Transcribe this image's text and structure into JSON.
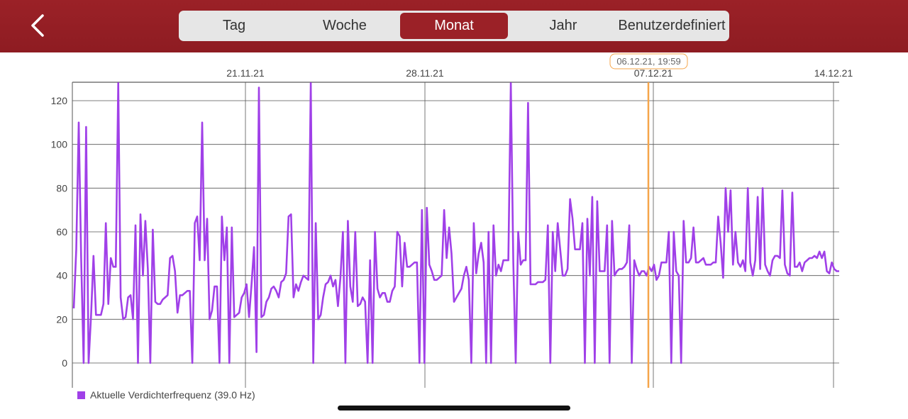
{
  "header": {
    "back_icon": "chevron-left-icon",
    "tabs": [
      {
        "label": "Tag",
        "active": false
      },
      {
        "label": "Woche",
        "active": false
      },
      {
        "label": "Monat",
        "active": true
      },
      {
        "label": "Jahr",
        "active": false
      },
      {
        "label": "Benutzerdefiniert",
        "active": false
      }
    ]
  },
  "colors": {
    "header_bg": "#9b2127",
    "series": "#a040e8",
    "cursor": "#f5a54a"
  },
  "chart_data": {
    "type": "line",
    "title": "",
    "xlabel": "",
    "ylabel": "",
    "x_ticks": [
      "21.11.21",
      "28.11.21",
      "07.12.21",
      "14.12.21"
    ],
    "y_ticks": [
      0,
      20,
      40,
      60,
      80,
      100,
      120
    ],
    "ylim": [
      -12,
      128
    ],
    "grid": true,
    "legend_position": "bottom-left",
    "cursor_label": "06.12.21, 19:59",
    "series": [
      {
        "name": "Aktuelle Verdichterfrequenz (39.0 Hz)",
        "values": [
          25,
          52,
          110,
          48,
          0,
          108,
          0,
          22,
          49,
          22,
          22,
          22,
          27,
          64,
          27,
          48,
          44,
          44,
          128,
          30,
          20,
          21,
          30,
          31,
          20,
          63,
          0,
          68,
          40,
          65,
          43,
          0,
          61,
          28,
          27,
          27,
          29,
          30,
          31,
          48,
          49,
          42,
          23,
          31,
          31,
          32,
          33,
          33,
          0,
          64,
          67,
          47,
          110,
          47,
          66,
          20,
          24,
          35,
          35,
          0,
          67,
          47,
          62,
          0,
          62,
          21,
          22,
          23,
          30,
          32,
          36,
          21,
          36,
          53,
          5,
          126,
          21,
          22,
          28,
          30,
          34,
          35,
          33,
          30,
          37,
          38,
          41,
          67,
          68,
          30,
          36,
          33,
          37,
          40,
          39,
          38,
          128,
          0,
          64,
          20,
          22,
          30,
          36,
          37,
          40,
          35,
          38,
          26,
          39,
          60,
          0,
          65,
          35,
          28,
          60,
          26,
          27,
          30,
          28,
          0,
          47,
          0,
          60,
          34,
          30,
          32,
          32,
          28,
          28,
          33,
          35,
          60,
          58,
          35,
          55,
          44,
          44,
          45,
          46,
          46,
          0,
          70,
          0,
          71,
          45,
          42,
          38,
          38,
          39,
          40,
          70,
          48,
          62,
          50,
          28,
          30,
          32,
          34,
          40,
          44,
          38,
          0,
          64,
          41,
          50,
          55,
          46,
          0,
          60,
          0,
          63,
          40,
          45,
          42,
          47,
          47,
          47,
          128,
          46,
          0,
          60,
          45,
          47,
          47,
          119,
          36,
          36,
          36,
          37,
          37,
          37,
          38,
          63,
          0,
          60,
          42,
          64,
          52,
          40,
          40,
          43,
          75,
          66,
          52,
          52,
          52,
          64,
          0,
          66,
          40,
          76,
          0,
          74,
          42,
          42,
          42,
          63,
          0,
          65,
          40,
          42,
          43,
          43,
          44,
          46,
          63,
          0,
          47,
          43,
          40,
          42,
          42,
          40,
          44,
          42,
          45,
          38,
          40,
          46,
          46,
          46,
          60,
          0,
          60,
          42,
          40,
          0,
          65,
          46,
          46,
          48,
          62,
          46,
          46,
          47,
          48,
          45,
          45,
          45,
          46,
          46,
          67,
          55,
          39,
          80,
          60,
          79,
          45,
          60,
          46,
          44,
          47,
          42,
          80,
          46,
          40,
          47,
          76,
          43,
          80,
          45,
          42,
          40,
          47,
          49,
          49,
          48,
          79,
          45,
          41,
          40,
          78,
          44,
          44,
          46,
          42,
          46,
          47,
          48,
          48,
          49,
          48,
          51,
          48,
          51,
          42,
          41,
          46,
          43,
          42,
          42
        ]
      }
    ]
  }
}
